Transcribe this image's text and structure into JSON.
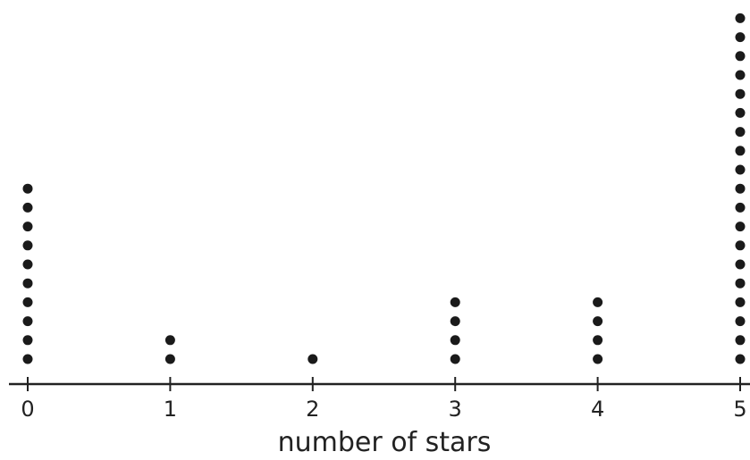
{
  "chart_data": {
    "type": "dot plot",
    "title": "",
    "xlabel": "number of stars",
    "ylabel": "",
    "categories": [
      "0",
      "1",
      "2",
      "3",
      "4",
      "5"
    ],
    "x": [
      0,
      1,
      2,
      3,
      4,
      5
    ],
    "counts": [
      10,
      2,
      1,
      4,
      4,
      19
    ],
    "xlim": [
      0,
      5
    ],
    "grid": false,
    "legend": "none",
    "colors": {
      "dot": "#1a1a1a",
      "axis": "#222222"
    }
  }
}
